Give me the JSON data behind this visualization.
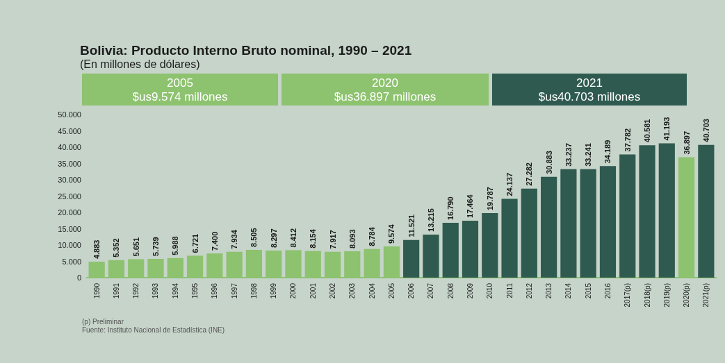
{
  "chart_data": {
    "type": "bar",
    "title": "Bolivia: Producto Interno Bruto nominal, 1990 – 2021",
    "subtitle": "(En millones de dólares)",
    "categories": [
      "1990",
      "1991",
      "1992",
      "1993",
      "1994",
      "1995",
      "1996",
      "1997",
      "1998",
      "1999",
      "2000",
      "2001",
      "2002",
      "2003",
      "2004",
      "2005",
      "2006",
      "2007",
      "2008",
      "2009",
      "2010",
      "2011",
      "2012",
      "2013",
      "2014",
      "2015",
      "2016",
      "2017(p)",
      "2018(p)",
      "2019(p)",
      "2020(p)",
      "2021(p)"
    ],
    "values": [
      4883,
      5352,
      5651,
      5739,
      5988,
      6721,
      7400,
      7934,
      8505,
      8297,
      8412,
      8154,
      7917,
      8093,
      8784,
      9574,
      11521,
      13215,
      16790,
      17464,
      19787,
      24137,
      27282,
      30883,
      33237,
      33241,
      34189,
      37782,
      40581,
      41193,
      36897,
      40703
    ],
    "value_labels": [
      "4.883",
      "5.352",
      "5.651",
      "5.739",
      "5.988",
      "6.721",
      "7.400",
      "7.934",
      "8.505",
      "8.297",
      "8.412",
      "8.154",
      "7.917",
      "8.093",
      "8.784",
      "9.574",
      "11.521",
      "13.215",
      "16.790",
      "17.464",
      "19.787",
      "24.137",
      "27.282",
      "30.883",
      "33.237",
      "33.241",
      "34.189",
      "37.782",
      "40.581",
      "41.193",
      "36.897",
      "40.703"
    ],
    "colors": [
      "#8dc26f",
      "#8dc26f",
      "#8dc26f",
      "#8dc26f",
      "#8dc26f",
      "#8dc26f",
      "#8dc26f",
      "#8dc26f",
      "#8dc26f",
      "#8dc26f",
      "#8dc26f",
      "#8dc26f",
      "#8dc26f",
      "#8dc26f",
      "#8dc26f",
      "#8dc26f",
      "#2f5a4f",
      "#2f5a4f",
      "#2f5a4f",
      "#2f5a4f",
      "#2f5a4f",
      "#2f5a4f",
      "#2f5a4f",
      "#2f5a4f",
      "#2f5a4f",
      "#2f5a4f",
      "#2f5a4f",
      "#2f5a4f",
      "#2f5a4f",
      "#2f5a4f",
      "#8dc26f",
      "#2f5a4f"
    ],
    "ylim": [
      0,
      50000
    ],
    "yticks": [
      {
        "value": 0,
        "label": "0"
      },
      {
        "value": 5000,
        "label": "5.000"
      },
      {
        "value": 10000,
        "label": "10.000"
      },
      {
        "value": 15000,
        "label": "15.000"
      },
      {
        "value": 20000,
        "label": "20.000"
      },
      {
        "value": 25000,
        "label": "25.000"
      },
      {
        "value": 30000,
        "label": "30.000"
      },
      {
        "value": 35000,
        "label": "35.000"
      },
      {
        "value": 40000,
        "label": "40.000"
      },
      {
        "value": 45000,
        "label": "45.000"
      },
      {
        "value": 50000,
        "label": "50.000"
      }
    ],
    "grid": false,
    "annotations": [
      "2005\n$us9.574 millones",
      "2020\n$us36.897 millones",
      "2021\n$us40.703 millones",
      "(p) Preliminar",
      "Fuente: Instituto Nacional de Estadística (INE)"
    ]
  }
}
